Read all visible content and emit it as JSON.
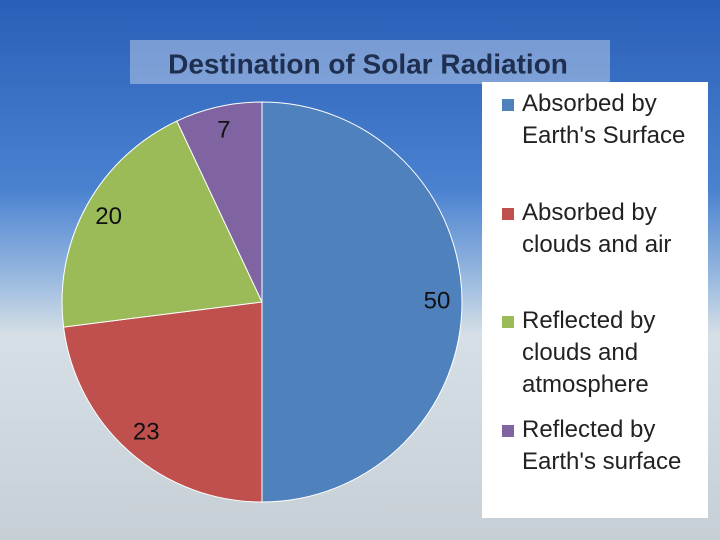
{
  "chart_data": {
    "type": "pie",
    "title": "Destination of Solar Radiation",
    "categories": [
      "Absorbed by Earth's Surface",
      "Absorbed by clouds and air",
      "Reflected by clouds and atmosphere",
      "Reflected by Earth's surface"
    ],
    "values": [
      50,
      23,
      20,
      7
    ],
    "colors": [
      "#4f81bd",
      "#c0504d",
      "#9bbb59",
      "#8064a2"
    ],
    "legend": "right"
  }
}
